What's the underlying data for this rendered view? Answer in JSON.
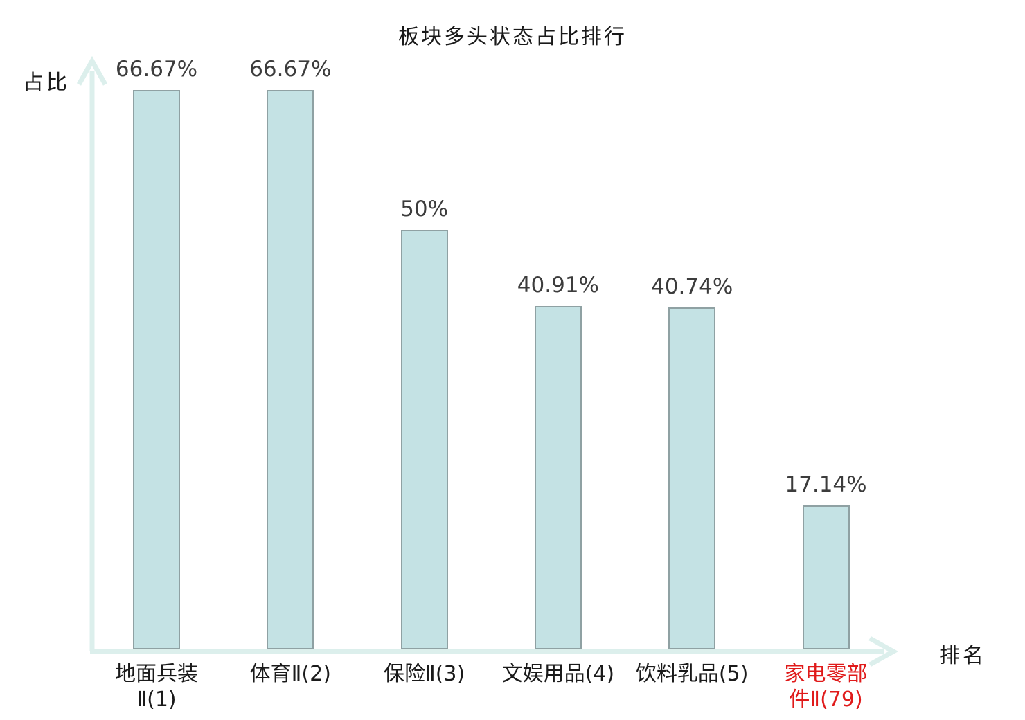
{
  "title": "板块多头状态占比排行",
  "axes": {
    "y_label": "占比",
    "x_label": "排名"
  },
  "colors": {
    "bar_fill": "#c4e2e4",
    "bar_border": "#8fa1a3",
    "axis": "#dcefec",
    "value_text": "#3c3c3c",
    "label_text": "#1a1a1a",
    "highlight_text": "#e01a1a"
  },
  "chart_data": {
    "type": "bar",
    "title": "板块多头状态占比排行",
    "xlabel": "排名",
    "ylabel": "占比",
    "ylim": [
      0,
      70
    ],
    "grid": false,
    "legend_position": "none",
    "categories": [
      "地面兵装Ⅱ(1)",
      "体育Ⅱ(2)",
      "保险Ⅱ(3)",
      "文娱用品(4)",
      "饮料乳品(5)",
      "家电零部件Ⅱ(79)"
    ],
    "values": [
      66.67,
      66.67,
      50,
      40.91,
      40.74,
      17.14
    ],
    "value_labels": [
      "66.67%",
      "66.67%",
      "50%",
      "40.91%",
      "40.74%",
      "17.14%"
    ],
    "tick_label_lines": [
      [
        "地面兵装",
        "Ⅱ(1)"
      ],
      [
        "体育Ⅱ(2)"
      ],
      [
        "保险Ⅱ(3)"
      ],
      [
        "文娱用品(4)"
      ],
      [
        "饮料乳品(5)"
      ],
      [
        "家电零部",
        "件Ⅱ(79)"
      ]
    ],
    "highlighted_index": 5
  }
}
